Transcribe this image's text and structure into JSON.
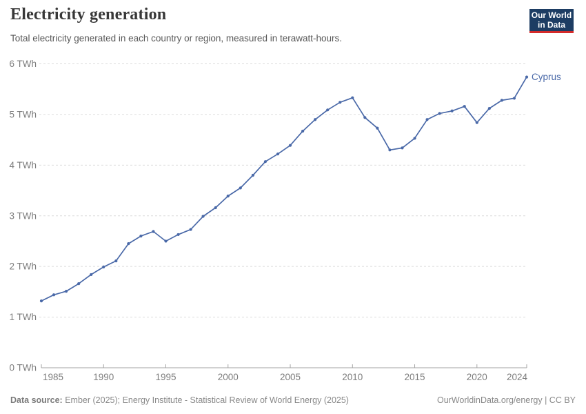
{
  "header": {
    "title": "Electricity generation",
    "subtitle": "Total electricity generated in each country or region, measured in terawatt-hours."
  },
  "logo": {
    "line1": "Our World",
    "line2": "in Data",
    "bg_color": "#1d3d63",
    "accent_color": "#d42b2b"
  },
  "chart_data": {
    "type": "line",
    "title": "Electricity generation",
    "xlabel": "",
    "ylabel": "TWh",
    "x": [
      1985,
      1986,
      1987,
      1988,
      1989,
      1990,
      1991,
      1992,
      1993,
      1994,
      1995,
      1996,
      1997,
      1998,
      1999,
      2000,
      2001,
      2002,
      2003,
      2004,
      2005,
      2006,
      2007,
      2008,
      2009,
      2010,
      2011,
      2012,
      2013,
      2014,
      2015,
      2016,
      2017,
      2018,
      2019,
      2020,
      2021,
      2022,
      2023,
      2024
    ],
    "series": [
      {
        "name": "Cyprus",
        "color": "#4a69a8",
        "values": [
          1.32,
          1.44,
          1.51,
          1.66,
          1.84,
          1.99,
          2.11,
          2.45,
          2.6,
          2.69,
          2.5,
          2.63,
          2.73,
          2.99,
          3.16,
          3.39,
          3.55,
          3.8,
          4.07,
          4.22,
          4.39,
          4.67,
          4.9,
          5.09,
          5.24,
          5.33,
          4.94,
          4.73,
          4.3,
          4.34,
          4.53,
          4.9,
          5.02,
          5.07,
          5.16,
          4.84,
          5.12,
          5.28,
          5.32,
          5.74
        ]
      }
    ],
    "xticks": [
      1985,
      1990,
      1995,
      2000,
      2005,
      2010,
      2015,
      2020,
      2024
    ],
    "yticks": [
      0,
      1,
      2,
      3,
      4,
      5,
      6
    ],
    "ytick_suffix": " TWh",
    "xlim": [
      1985,
      2024
    ],
    "ylim": [
      0,
      6
    ],
    "grid": true,
    "legend": "end-of-line label"
  },
  "footer": {
    "source_label": "Data source:",
    "source_text": " Ember (2025); Energy Institute - Statistical Review of World Energy (2025)",
    "link_text": "OurWorldinData.org/energy | CC BY"
  },
  "colors": {
    "line": "#4a69a8",
    "grid": "#dcdcdc",
    "axis": "#a3a3a3",
    "tick_label": "#7d7d7d",
    "title": "#383838",
    "subtitle": "#575757",
    "footer": "#888888"
  }
}
